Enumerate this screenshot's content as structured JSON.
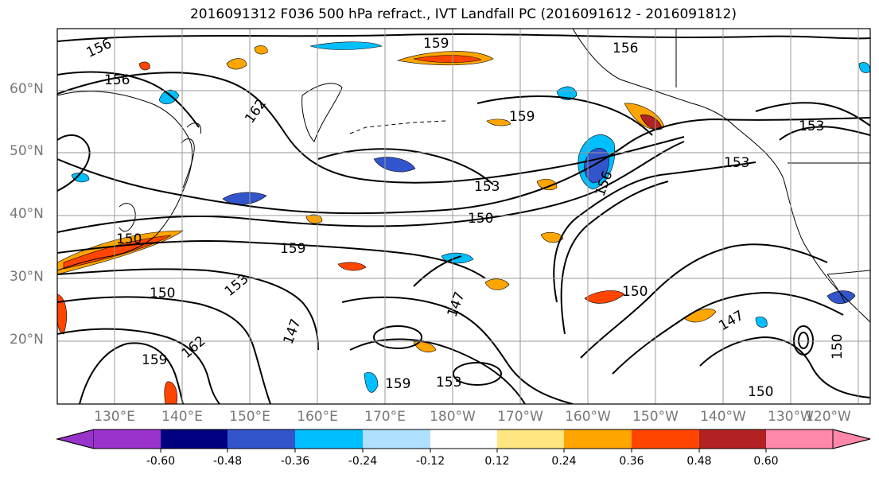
{
  "title": "2016091312 F036 500 hPa refract., IVT Landfall PC (2016091612 - 2016091812)",
  "lat_labels": [
    "60°N",
    "50°N",
    "40°N",
    "30°N",
    "20°N"
  ],
  "lon_labels": [
    "130°E",
    "140°E",
    "150°E",
    "160°E",
    "170°E",
    "180°W",
    "170°W",
    "160°W",
    "150°W",
    "140°W",
    "130°W",
    "120°W"
  ],
  "colorbar": {
    "ticks": [
      "-0.60",
      "-0.48",
      "-0.36",
      "-0.24",
      "-0.12",
      "0.12",
      "0.24",
      "0.36",
      "0.48",
      "0.60"
    ],
    "colors": [
      "#9933cc",
      "#000080",
      "#3355cc",
      "#00bfff",
      "#b0e0ff",
      "#ffffff",
      "#ffe680",
      "#ffa500",
      "#ff4500",
      "#b22222",
      "#ff88aa"
    ]
  },
  "contour_labels": [
    "156",
    "156",
    "159",
    "156",
    "162",
    "159",
    "153",
    "153",
    "153",
    "150",
    "150",
    "147",
    "147",
    "159",
    "162",
    "159",
    "150",
    "153",
    "150",
    "147",
    "150",
    "159",
    "153",
    "150",
    "156"
  ],
  "colors": {
    "negative_strong": "#3355cc",
    "negative": "#00bfff",
    "negative_weak": "#b0e0ff",
    "positive_weak": "#ffe680",
    "positive": "#ffa500",
    "positive_strong": "#ff4500"
  }
}
